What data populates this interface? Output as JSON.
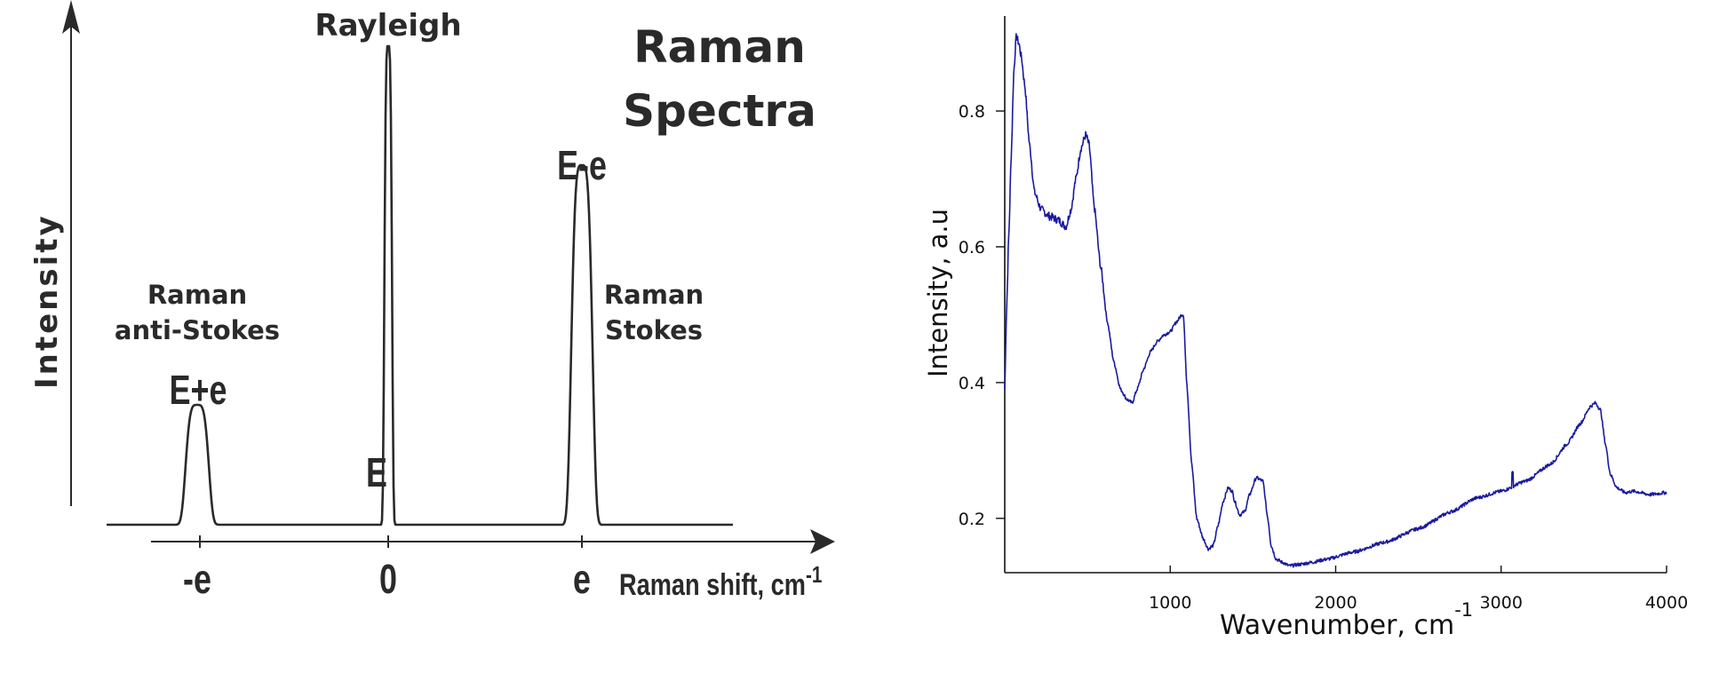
{
  "chart_data": [
    {
      "type": "line",
      "title": "Raman Spectra",
      "title_lines": [
        "Raman",
        "Spectra"
      ],
      "xlabel": "Raman shift, cm",
      "xlabel_sup": "-1",
      "ylabel": "Intensity",
      "x_ticks": [
        "-e",
        "0",
        "e"
      ],
      "peaks": [
        {
          "name": "Raman anti-Stokes",
          "label_lines": [
            "Raman",
            "anti-Stokes"
          ],
          "peak_label": "E+e",
          "x": -1,
          "height": 0.25
        },
        {
          "name": "Rayleigh",
          "label_lines": [
            "Rayleigh"
          ],
          "peak_label": "E",
          "x": 0,
          "height": 1.0
        },
        {
          "name": "Raman Stokes",
          "label_lines": [
            "Raman",
            "Stokes"
          ],
          "peak_label": "E-e",
          "x": 1,
          "height": 0.75
        }
      ],
      "colors": {
        "line": "#2a2a2a"
      }
    },
    {
      "type": "line",
      "xlabel": "Wavenumber, cm",
      "xlabel_sup": "-1",
      "ylabel": "Intensity, a.u",
      "xlim": [
        0,
        4000
      ],
      "ylim": [
        0.12,
        0.94
      ],
      "x_ticks": [
        1000,
        2000,
        3000,
        4000
      ],
      "y_ticks": [
        0.2,
        0.4,
        0.6,
        0.8
      ],
      "x_tick_labels": [
        "1000",
        "2000",
        "3000",
        "4000"
      ],
      "y_tick_labels": [
        "0.2",
        "0.4",
        "0.6",
        "0.8"
      ],
      "series": [
        {
          "x": [
            0,
            10,
            25,
            40,
            55,
            70,
            85,
            100,
            120,
            150,
            180,
            220,
            270,
            320,
            370,
            400,
            430,
            460,
            490,
            510,
            540,
            580,
            620,
            660,
            700,
            740,
            770,
            800,
            840,
            880,
            920,
            960,
            1000,
            1040,
            1070,
            1080,
            1100,
            1130,
            1160,
            1200,
            1230,
            1260,
            1290,
            1320,
            1350,
            1375,
            1390,
            1420,
            1450,
            1480,
            1520,
            1560,
            1590,
            1610,
            1640,
            1680,
            1720,
            1780,
            1850,
            1950,
            2100,
            2300,
            2500,
            2700,
            2850,
            3000,
            3150,
            3300,
            3400,
            3480,
            3540,
            3570,
            3600,
            3630,
            3660,
            3700,
            3750,
            3800,
            3900,
            4000
          ],
          "y": [
            0.39,
            0.5,
            0.62,
            0.74,
            0.86,
            0.91,
            0.9,
            0.88,
            0.84,
            0.75,
            0.68,
            0.655,
            0.645,
            0.64,
            0.63,
            0.655,
            0.7,
            0.745,
            0.765,
            0.75,
            0.66,
            0.57,
            0.49,
            0.43,
            0.39,
            0.375,
            0.37,
            0.39,
            0.42,
            0.445,
            0.46,
            0.47,
            0.475,
            0.49,
            0.5,
            0.5,
            0.4,
            0.28,
            0.2,
            0.17,
            0.155,
            0.16,
            0.19,
            0.225,
            0.245,
            0.24,
            0.225,
            0.205,
            0.21,
            0.235,
            0.26,
            0.255,
            0.2,
            0.16,
            0.14,
            0.135,
            0.13,
            0.132,
            0.135,
            0.14,
            0.15,
            0.165,
            0.185,
            0.21,
            0.23,
            0.24,
            0.255,
            0.28,
            0.31,
            0.34,
            0.365,
            0.37,
            0.36,
            0.31,
            0.265,
            0.245,
            0.238,
            0.24,
            0.235,
            0.238
          ]
        }
      ],
      "colors": {
        "line": "#1a1a9e",
        "axis": "#111111"
      }
    }
  ]
}
